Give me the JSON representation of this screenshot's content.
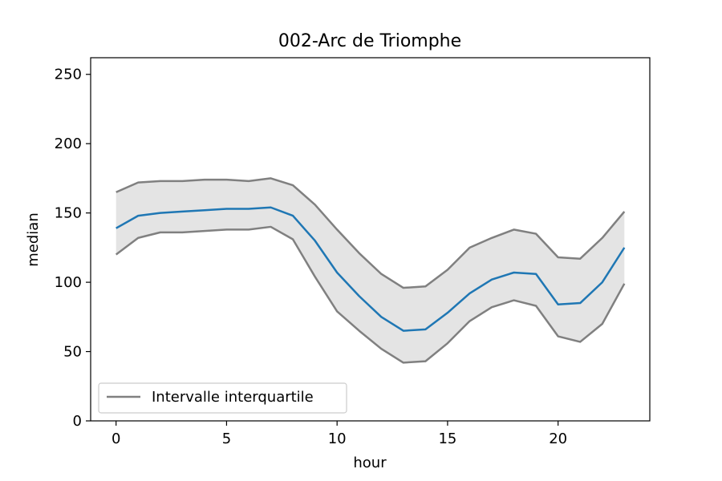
{
  "chart_data": {
    "type": "line",
    "title": "002-Arc de Triomphe",
    "xlabel": "hour",
    "ylabel": "median",
    "xlim": [
      -1.15,
      24.15
    ],
    "ylim": [
      0,
      262
    ],
    "xticks": [
      0,
      5,
      10,
      15,
      20
    ],
    "yticks": [
      0,
      50,
      100,
      150,
      200,
      250
    ],
    "grid": false,
    "legend_position": "lower-left",
    "x": [
      0,
      1,
      2,
      3,
      4,
      5,
      6,
      7,
      8,
      9,
      10,
      11,
      12,
      13,
      14,
      15,
      16,
      17,
      18,
      19,
      20,
      21,
      22,
      23
    ],
    "series": [
      {
        "role": "median",
        "color": "#1f77b4",
        "values": [
          139,
          148,
          150,
          151,
          152,
          153,
          153,
          154,
          148,
          130,
          107,
          90,
          75,
          65,
          66,
          78,
          92,
          102,
          107,
          106,
          84,
          85,
          100,
          125
        ]
      },
      {
        "role": "upper_quartile",
        "name": "Intervalle interquartile",
        "color": "#808080",
        "values": [
          165,
          172,
          173,
          173,
          174,
          174,
          173,
          175,
          170,
          156,
          138,
          121,
          106,
          96,
          97,
          109,
          125,
          132,
          138,
          135,
          118,
          117,
          132,
          151
        ]
      },
      {
        "role": "lower_quartile",
        "color": "#808080",
        "values": [
          120,
          132,
          136,
          136,
          137,
          138,
          138,
          140,
          131,
          104,
          79,
          65,
          52,
          42,
          43,
          56,
          72,
          82,
          87,
          83,
          61,
          57,
          70,
          99
        ]
      }
    ],
    "band_fill_color": "#e4e4e4",
    "legend": [
      {
        "label": "Intervalle interquartile",
        "color": "#808080"
      }
    ]
  }
}
